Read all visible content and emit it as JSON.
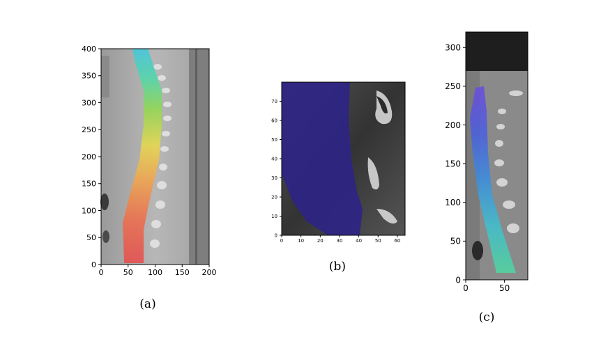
{
  "figure": {
    "panels": [
      {
        "caption": "(a)",
        "xticks": [
          "0",
          "50",
          "100",
          "150",
          "200"
        ],
        "yticks": [
          "0",
          "50",
          "100",
          "150",
          "200",
          "250",
          "300",
          "350",
          "400"
        ],
        "xlim": [
          0,
          200
        ],
        "ylim": [
          0,
          400
        ],
        "colormap": "jet"
      },
      {
        "caption": "(b)",
        "xticks": [
          "0",
          "10",
          "20",
          "30",
          "40",
          "50",
          "60"
        ],
        "yticks": [
          "0",
          "10",
          "20",
          "30",
          "40",
          "50",
          "60",
          "70"
        ],
        "xlim": [
          0,
          64
        ],
        "ylim": [
          0,
          80
        ],
        "overlay_color": "#3a2a9a"
      },
      {
        "caption": "(c)",
        "xticks": [
          "0",
          "50"
        ],
        "yticks": [
          "0",
          "50",
          "100",
          "150",
          "200",
          "250",
          "300"
        ],
        "xlim": [
          0,
          80
        ],
        "ylim": [
          0,
          320
        ],
        "colormap": "jet"
      }
    ]
  }
}
